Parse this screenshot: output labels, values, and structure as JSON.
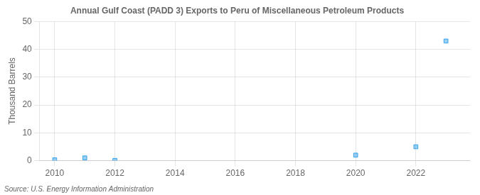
{
  "chart_data": {
    "type": "scatter",
    "title": "Annual Gulf Coast (PADD 3) Exports to Peru of Miscellaneous Petroleum Products",
    "ylabel": "Thousand Barrels",
    "annotations": [
      "Source: U.S. Energy Information Administration"
    ],
    "x": [
      2010,
      2011,
      2012,
      2020,
      2022,
      2023
    ],
    "values": [
      0.3,
      1.0,
      0.1,
      2.0,
      5.0,
      43.0
    ],
    "marker": "square",
    "xlim": [
      2009.5,
      2023.8
    ],
    "ylim": [
      0,
      50
    ],
    "xticks": [
      2010,
      2012,
      2014,
      2016,
      2018,
      2020,
      2022
    ],
    "yticks": [
      0,
      10,
      20,
      30,
      40,
      50
    ],
    "grid": true
  }
}
